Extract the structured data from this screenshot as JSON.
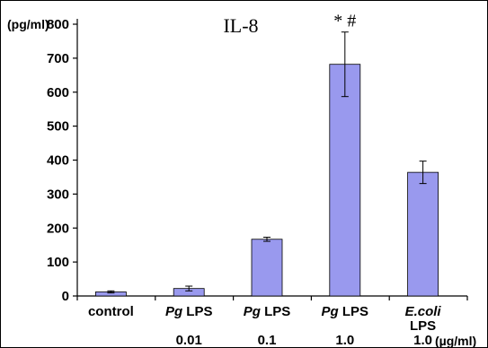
{
  "chart_data": {
    "type": "bar",
    "title": "IL-8",
    "ylabel": "(pg/ml)",
    "xunit": "(µg/ml)",
    "ylim": [
      0,
      800
    ],
    "yticks": [
      0,
      100,
      200,
      300,
      400,
      500,
      600,
      700,
      800
    ],
    "bar_color": "#9999ee",
    "categories": [
      {
        "parts": [
          {
            "text": "control",
            "italic": false
          }
        ],
        "line2": "",
        "dose": ""
      },
      {
        "parts": [
          {
            "text": "Pg",
            "italic": true
          },
          {
            "text": " LPS",
            "italic": false
          }
        ],
        "line2": "",
        "dose": "0.01"
      },
      {
        "parts": [
          {
            "text": "Pg",
            "italic": true
          },
          {
            "text": " LPS",
            "italic": false
          }
        ],
        "line2": "",
        "dose": "0.1"
      },
      {
        "parts": [
          {
            "text": "Pg",
            "italic": true
          },
          {
            "text": " LPS",
            "italic": false
          }
        ],
        "line2": "",
        "dose": "1.0"
      },
      {
        "parts": [
          {
            "text": "E.coli",
            "italic": true
          }
        ],
        "line2": "LPS",
        "dose": "1.0"
      }
    ],
    "values": [
      12,
      22,
      167,
      682,
      364
    ],
    "errors": [
      3,
      7,
      6,
      95,
      33
    ],
    "annotations": [
      "",
      "",
      "",
      "* #",
      ""
    ]
  }
}
